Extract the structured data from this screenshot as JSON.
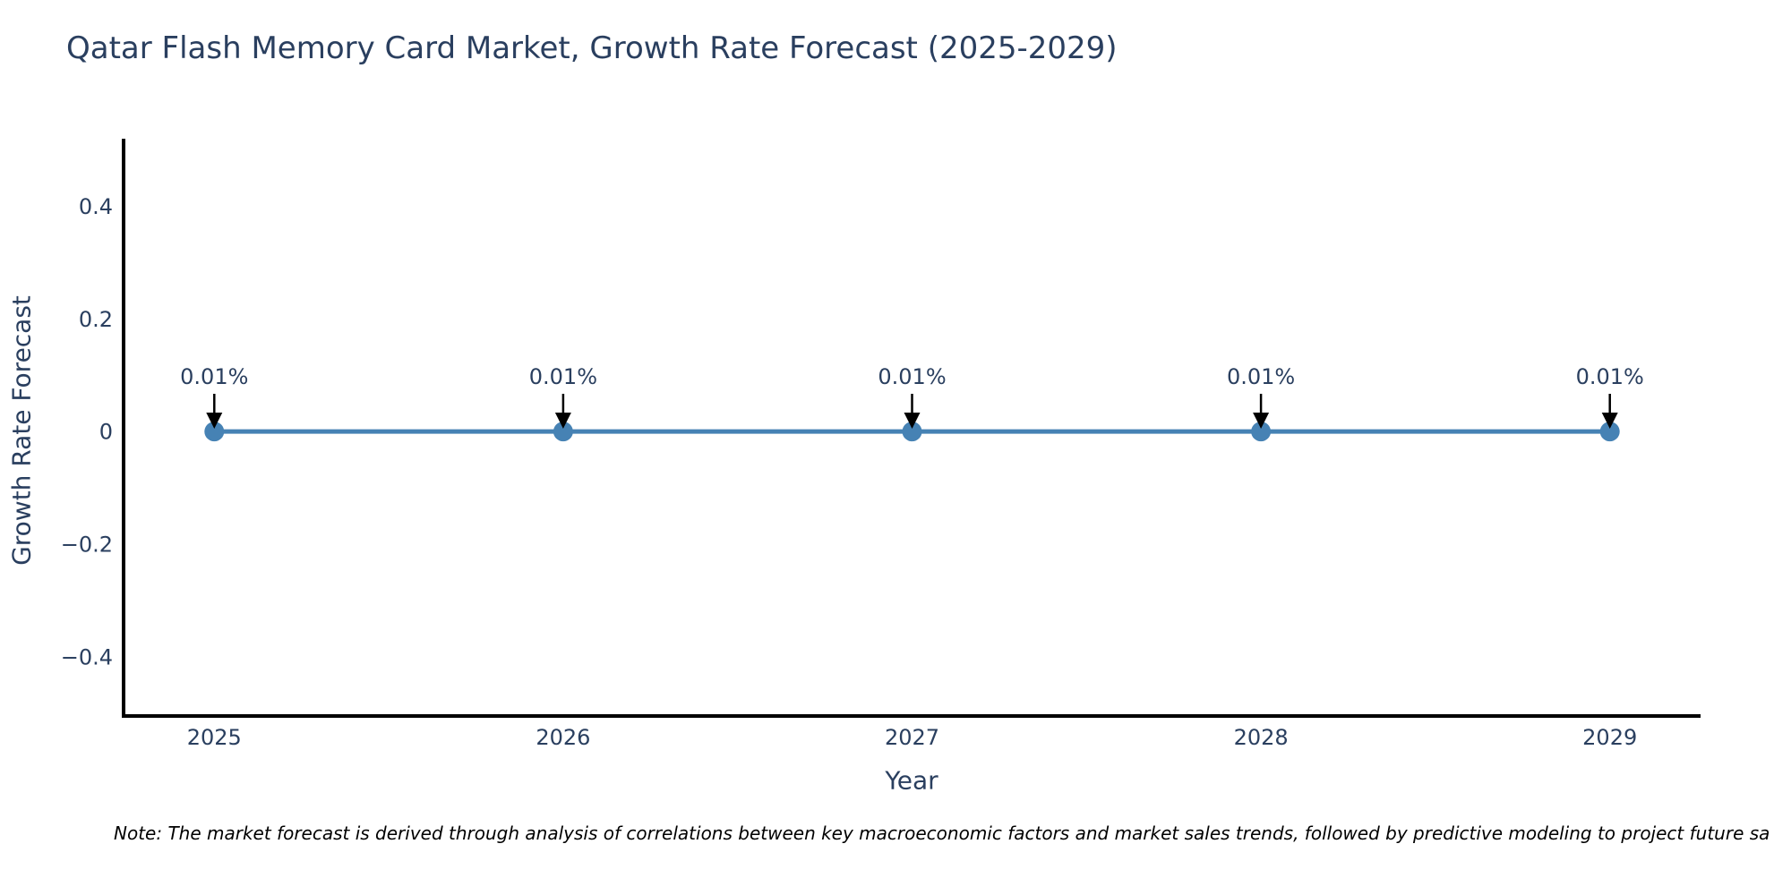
{
  "figure": {
    "title": "Qatar Flash Memory Card Market, Growth Rate Forecast (2025-2029)",
    "note": "Note: The market forecast is derived through analysis of correlations between key macroeconomic factors and market sales trends, followed by predictive modeling to project future sa"
  },
  "chart_data": {
    "type": "line",
    "title": "Qatar Flash Memory Card Market, Growth Rate Forecast (2025-2029)",
    "xlabel": "Year",
    "ylabel": "Growth Rate Forecast",
    "x": [
      2025,
      2026,
      2027,
      2028,
      2029
    ],
    "series": [
      {
        "name": "Growth Rate Forecast",
        "values": [
          0.0001,
          0.0001,
          0.0001,
          0.0001,
          0.0001
        ],
        "point_labels": [
          "0.01%",
          "0.01%",
          "0.01%",
          "0.01%",
          "0.01%"
        ]
      }
    ],
    "xlim": [
      2024.74,
      2029.26
    ],
    "ylim": [
      -0.505,
      0.52
    ],
    "xticks": [
      2025,
      2026,
      2027,
      2028,
      2029
    ],
    "xtick_labels": [
      "2025",
      "2026",
      "2027",
      "2028",
      "2029"
    ],
    "yticks": [
      0.4,
      0.2,
      0,
      -0.2,
      -0.4
    ],
    "ytick_labels": [
      "0.4",
      "0.2",
      "0",
      "−0.2",
      "−0.4"
    ],
    "grid": false,
    "legend_position": "none",
    "colors": {
      "line": "#4682b4",
      "marker": "#4682b4",
      "axis": "#000000",
      "labels": "#2a3f5f",
      "arrow": "#000000"
    }
  }
}
